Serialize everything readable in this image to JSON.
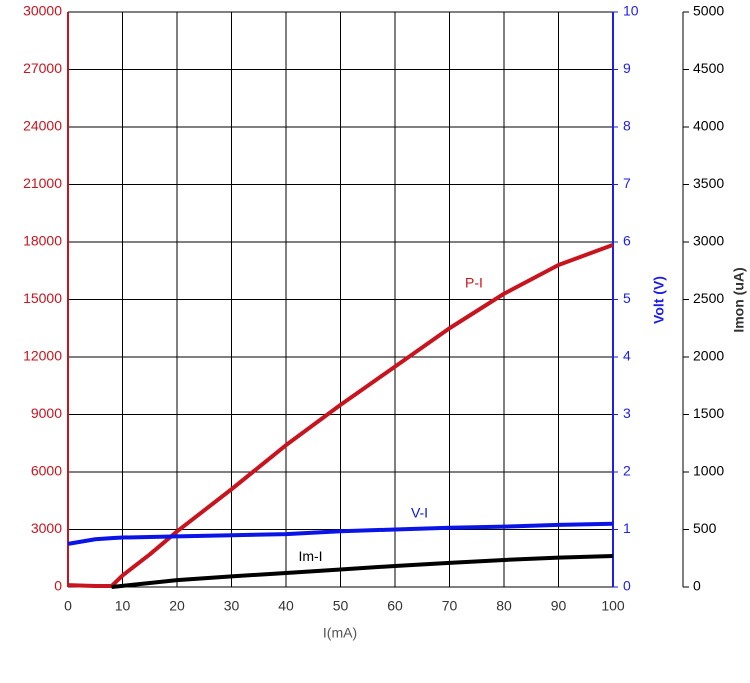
{
  "chart_data": {
    "type": "line",
    "x_label": "I(mA)",
    "y2_label": "Volt (V)",
    "y3_label": "Imon (uA)",
    "x": [
      0,
      5,
      8,
      10,
      15,
      20,
      30,
      40,
      50,
      60,
      70,
      80,
      90,
      100
    ],
    "xlim": [
      0,
      100
    ],
    "xticks": [
      0,
      10,
      20,
      30,
      40,
      50,
      60,
      70,
      80,
      90,
      100
    ],
    "ylim": [
      0,
      30000
    ],
    "yticks": [
      0,
      3000,
      6000,
      9000,
      12000,
      15000,
      18000,
      21000,
      24000,
      27000,
      30000
    ],
    "y2lim": [
      0,
      10
    ],
    "y2ticks": [
      0,
      1,
      2,
      3,
      4,
      5,
      6,
      7,
      8,
      9,
      10
    ],
    "y3lim": [
      0,
      5000
    ],
    "y3ticks": [
      0,
      500,
      1000,
      1500,
      2000,
      2500,
      3000,
      3500,
      4000,
      4500,
      5000
    ],
    "grid": true,
    "y_color": "#c8141e",
    "y2_color": "#1e1ee6",
    "y3_color": "#000000",
    "series": [
      {
        "name": "P-I",
        "color": "#c8141e",
        "axis": "y",
        "values": [
          100,
          50,
          50,
          600,
          1700,
          2900,
          5100,
          7400,
          9500,
          11500,
          13500,
          15300,
          16800,
          17850
        ]
      },
      {
        "name": "V-I",
        "color": "#0a14e6",
        "axis": "y2",
        "values": [
          0.75,
          0.83,
          0.85,
          0.86,
          0.87,
          0.88,
          0.9,
          0.92,
          0.97,
          1.0,
          1.03,
          1.05,
          1.08,
          1.1
        ]
      },
      {
        "name": "Im-I",
        "color": "#000000",
        "axis": "y3",
        "values": [
          null,
          null,
          0,
          10,
          35,
          60,
          92,
          122,
          152,
          183,
          210,
          235,
          255,
          270
        ]
      }
    ]
  }
}
